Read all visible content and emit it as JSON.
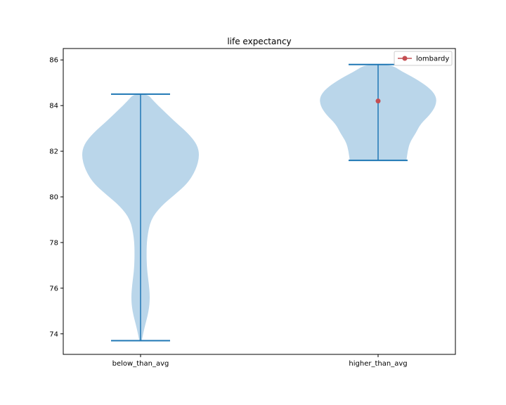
{
  "chart_data": {
    "type": "violin",
    "title": "life expectancy",
    "xlabel": "",
    "ylabel": "",
    "ylim": [
      73.1,
      86.5
    ],
    "yticks": [
      74,
      76,
      78,
      80,
      82,
      84,
      86
    ],
    "categories": [
      "below_than_avg",
      "higher_than_avg"
    ],
    "violins": [
      {
        "category": "below_than_avg",
        "min": 73.7,
        "max": 84.5,
        "density": [
          [
            73.7,
            0.02
          ],
          [
            74.2,
            0.06
          ],
          [
            75.0,
            0.14
          ],
          [
            75.6,
            0.16
          ],
          [
            76.2,
            0.14
          ],
          [
            76.8,
            0.11
          ],
          [
            77.5,
            0.1
          ],
          [
            78.2,
            0.11
          ],
          [
            79.0,
            0.17
          ],
          [
            79.6,
            0.35
          ],
          [
            80.1,
            0.58
          ],
          [
            80.6,
            0.8
          ],
          [
            81.2,
            0.94
          ],
          [
            81.8,
            1.0
          ],
          [
            82.3,
            0.96
          ],
          [
            82.8,
            0.8
          ],
          [
            83.3,
            0.58
          ],
          [
            83.8,
            0.38
          ],
          [
            84.2,
            0.22
          ],
          [
            84.5,
            0.12
          ]
        ]
      },
      {
        "category": "higher_than_avg",
        "min": 81.6,
        "max": 85.8,
        "density": [
          [
            81.6,
            0.48
          ],
          [
            82.0,
            0.5
          ],
          [
            82.4,
            0.54
          ],
          [
            82.8,
            0.64
          ],
          [
            83.2,
            0.72
          ],
          [
            83.6,
            0.88
          ],
          [
            84.0,
            0.98
          ],
          [
            84.4,
            0.99
          ],
          [
            84.8,
            0.86
          ],
          [
            85.2,
            0.62
          ],
          [
            85.5,
            0.4
          ],
          [
            85.8,
            0.22
          ]
        ]
      }
    ],
    "markers": [
      {
        "category": "higher_than_avg",
        "value": 84.2,
        "label": "lombardy",
        "color": "#c44e52"
      }
    ],
    "legend": {
      "position": "top-right",
      "entries": [
        "lombardy"
      ]
    },
    "colors": {
      "violin_fill": "#bad6ea",
      "violin_line": "#1f77b4",
      "marker": "#c44e52"
    },
    "grid": false
  }
}
